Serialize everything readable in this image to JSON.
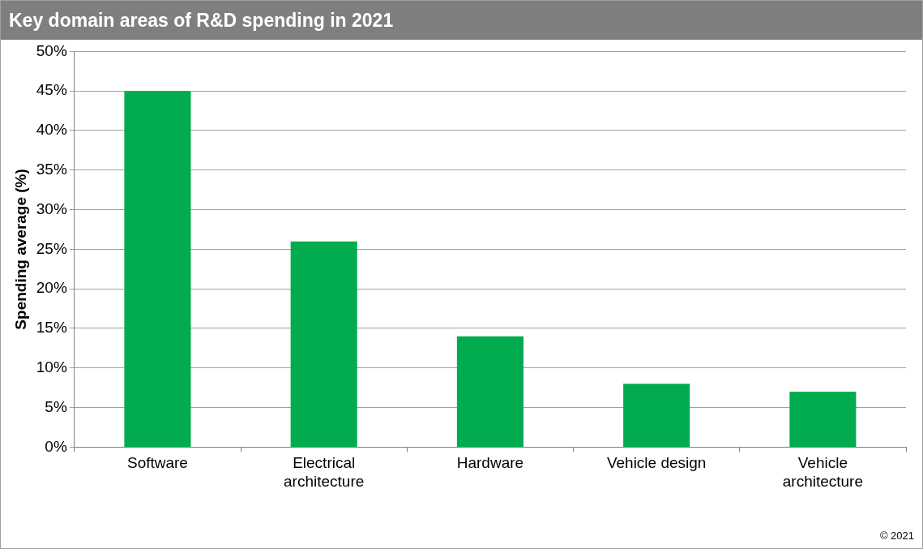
{
  "chart_data": {
    "type": "bar",
    "title": "Key domain areas of R&D spending in 2021",
    "ylabel": "Spending average (%)",
    "categories": [
      "Software",
      "Electrical architecture",
      "Hardware",
      "Vehicle design",
      "Vehicle architecture"
    ],
    "values": [
      45,
      26,
      14,
      8,
      7
    ],
    "color": "#00ac4e",
    "ylim": [
      0,
      50
    ],
    "yticks": [
      {
        "value": 0,
        "label": "0%"
      },
      {
        "value": 5,
        "label": "5%"
      },
      {
        "value": 10,
        "label": "10%"
      },
      {
        "value": 15,
        "label": "15%"
      },
      {
        "value": 20,
        "label": "20%"
      },
      {
        "value": 25,
        "label": "25%"
      },
      {
        "value": 30,
        "label": "30%"
      },
      {
        "value": 35,
        "label": "35%"
      },
      {
        "value": 40,
        "label": "40%"
      },
      {
        "value": 45,
        "label": "45%"
      },
      {
        "value": 50,
        "label": "50%"
      }
    ],
    "grid": "y",
    "legend": false,
    "annotations": [
      "© 2021"
    ]
  }
}
